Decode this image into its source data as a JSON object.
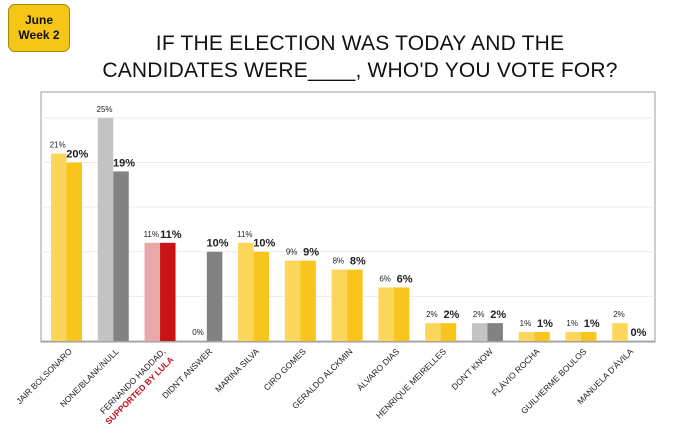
{
  "badge": {
    "line1": "June",
    "line2": "Week 2"
  },
  "title": {
    "line1": "IF THE ELECTION WAS TODAY AND THE",
    "line2": "CANDIDATES WERE____, WHO'D YOU VOTE FOR?"
  },
  "colors": {
    "light_yellow": "#fcd65b",
    "yellow": "#f7c51c",
    "light_gray": "#c4c4c4",
    "gray": "#828282",
    "pink": "#e8a8a8",
    "red": "#c81414",
    "label_red": "#c0101c"
  },
  "chart_data": {
    "type": "bar",
    "ylim": [
      0,
      27
    ],
    "categories": [
      {
        "label": "JAIR BOLSONARO",
        "old": 21,
        "new": 20,
        "old_label": "21%",
        "new_label": "20%",
        "color_old": "light_yellow",
        "color_new": "yellow"
      },
      {
        "label": "NONE/BLANK/NULL",
        "old": 25,
        "new": 19,
        "old_label": "25%",
        "new_label": "19%",
        "color_old": "light_gray",
        "color_new": "gray"
      },
      {
        "label": "FERNANDO HADDAD,",
        "label2": "SUPPORTED BY LULA",
        "old": 11,
        "new": 11,
        "old_label": "11%",
        "new_label": "11%",
        "color_old": "pink",
        "color_new": "red"
      },
      {
        "label": "DIDN'T ANSWER",
        "old": 0,
        "new": 10,
        "old_label": "0%",
        "new_label": "10%",
        "color_old": "light_gray",
        "color_new": "gray"
      },
      {
        "label": "MARINA SILVA",
        "old": 11,
        "new": 10,
        "old_label": "11%",
        "new_label": "10%",
        "color_old": "light_yellow",
        "color_new": "yellow"
      },
      {
        "label": "CIRO GOMES",
        "old": 9,
        "new": 9,
        "old_label": "9%",
        "new_label": "9%",
        "color_old": "light_yellow",
        "color_new": "yellow"
      },
      {
        "label": "GERALDO ALCKMIN",
        "old": 8,
        "new": 8,
        "old_label": "8%",
        "new_label": "8%",
        "color_old": "light_yellow",
        "color_new": "yellow"
      },
      {
        "label": "ÁLVARO DIAS",
        "old": 6,
        "new": 6,
        "old_label": "6%",
        "new_label": "6%",
        "color_old": "light_yellow",
        "color_new": "yellow"
      },
      {
        "label": "HENRIQUE MEIRELLES",
        "old": 2,
        "new": 2,
        "old_label": "2%",
        "new_label": "2%",
        "color_old": "light_yellow",
        "color_new": "yellow"
      },
      {
        "label": "DON'T KNOW",
        "old": 2,
        "new": 2,
        "old_label": "2%",
        "new_label": "2%",
        "color_old": "light_gray",
        "color_new": "gray"
      },
      {
        "label": "FLÁVIO ROCHA",
        "old": 1,
        "new": 1,
        "old_label": "1%",
        "new_label": "1%",
        "color_old": "light_yellow",
        "color_new": "yellow"
      },
      {
        "label": "GUILHERME BOULOS",
        "old": 1,
        "new": 1,
        "old_label": "1%",
        "new_label": "1%",
        "color_old": "light_yellow",
        "color_new": "yellow"
      },
      {
        "label": "MANUELA D'ÁVILA",
        "old": 2,
        "new": 0,
        "old_label": "2%",
        "new_label": "0%",
        "color_old": "light_yellow",
        "color_new": "yellow"
      }
    ]
  }
}
